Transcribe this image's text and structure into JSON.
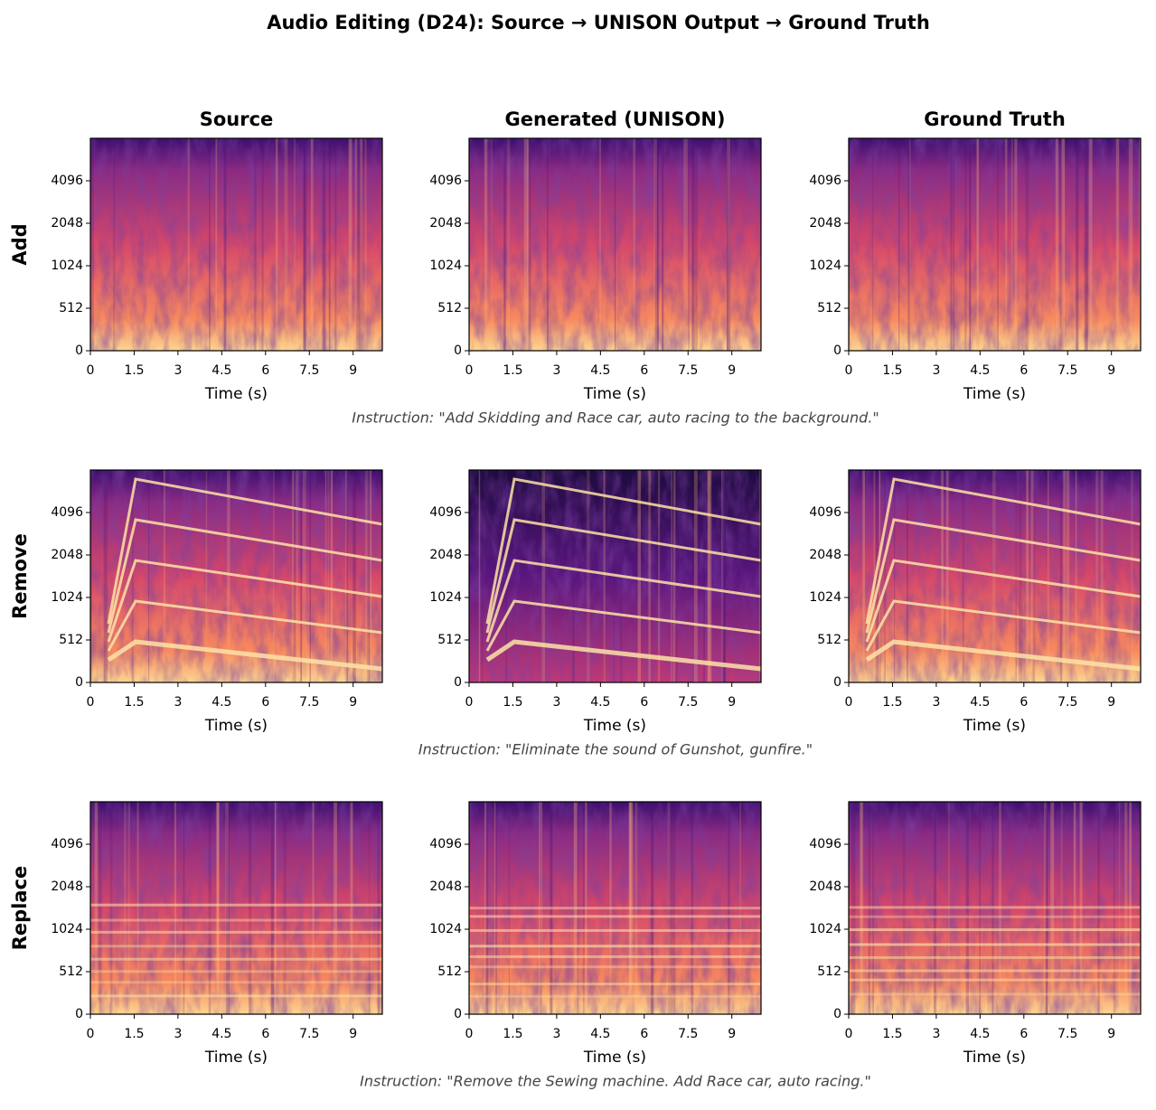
{
  "title": "Audio Editing (D24): Source → UNISON Output → Ground Truth",
  "columns": [
    "Source",
    "Generated (UNISON)",
    "Ground Truth"
  ],
  "rows": [
    {
      "label": "Add",
      "instruction": "Instruction: \"Add Skidding and Race car, auto racing to the background.\""
    },
    {
      "label": "Remove",
      "instruction": "Instruction: \"Eliminate the sound of Gunshot, gunfire.\""
    },
    {
      "label": "Replace",
      "instruction": "Instruction: \"Remove the Sewing machine. Add Race car, auto racing.\""
    }
  ],
  "axes": {
    "xlabel": "Time (s)",
    "xlim": [
      0,
      10
    ],
    "xticks": [
      0,
      1.5,
      3,
      4.5,
      6,
      7.5,
      9
    ],
    "yticks": [
      0,
      512,
      1024,
      2048,
      4096
    ]
  }
}
